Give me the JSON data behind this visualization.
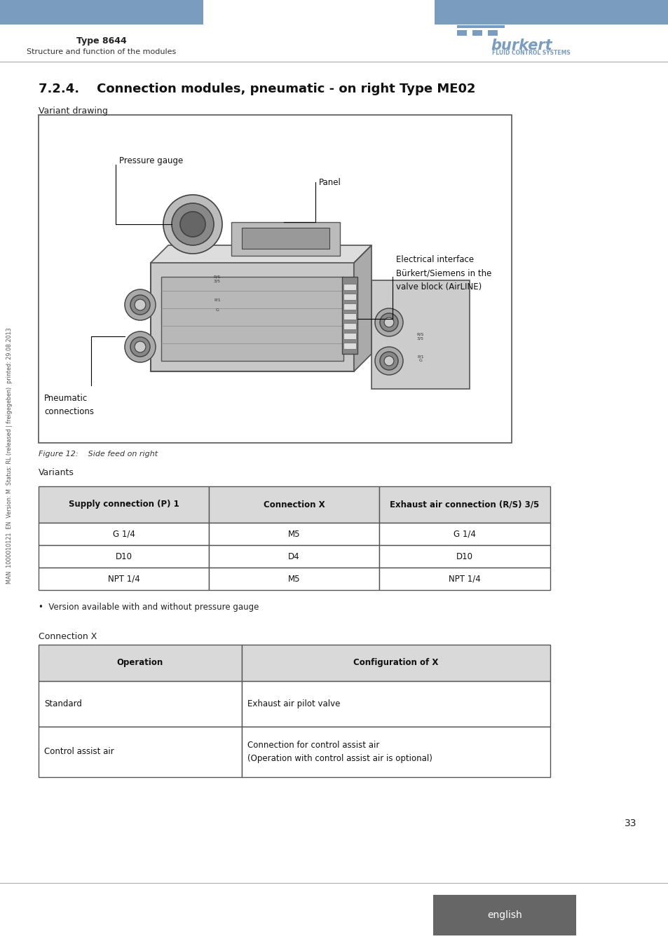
{
  "page_bg": "#ffffff",
  "header_bar_color": "#7a9cbf",
  "header_type_text": "Type 8644",
  "header_sub_text": "Structure and function of the modules",
  "burkert_text": "burkert",
  "burkert_sub": "FLUID CONTROL SYSTEMS",
  "section_title": "7.2.4.    Connection modules, pneumatic - on right Type ME02",
  "variant_drawing_label": "Variant drawing",
  "figure_caption": "Figure 12:    Side feed on right",
  "variants_label": "Variants",
  "table1_headers": [
    "Supply connection (P) 1",
    "Connection X",
    "Exhaust air connection (R/S) 3/5"
  ],
  "table1_rows": [
    [
      "G 1/4",
      "M5",
      "G 1/4"
    ],
    [
      "D10",
      "D4",
      "D10"
    ],
    [
      "NPT 1/4",
      "M5",
      "NPT 1/4"
    ]
  ],
  "bullet_text": "•  Version available with and without pressure gauge",
  "connection_x_label": "Connection X",
  "table2_headers": [
    "Operation",
    "Configuration of X"
  ],
  "table2_rows": [
    [
      "Standard",
      "Exhaust air pilot valve"
    ],
    [
      "Control assist air",
      "Connection for control assist air\n(Operation with control assist air is optional)"
    ]
  ],
  "page_number": "33",
  "english_btn_color": "#666666",
  "english_text": "english",
  "sidebar_text": "MAN  1000010121  EN  Version: M  Status: RL (released | freigegeben)  printed: 29.08.2013",
  "table_header_bg": "#d9d9d9",
  "table_border_color": "#555555",
  "annotation_pressure_gauge": "Pressure gauge",
  "annotation_panel": "Panel",
  "annotation_electrical": "Electrical interface\nBürkert/Siemens in the\nvalve block (AirLINE)",
  "annotation_pneumatic": "Pneumatic\nconnections"
}
